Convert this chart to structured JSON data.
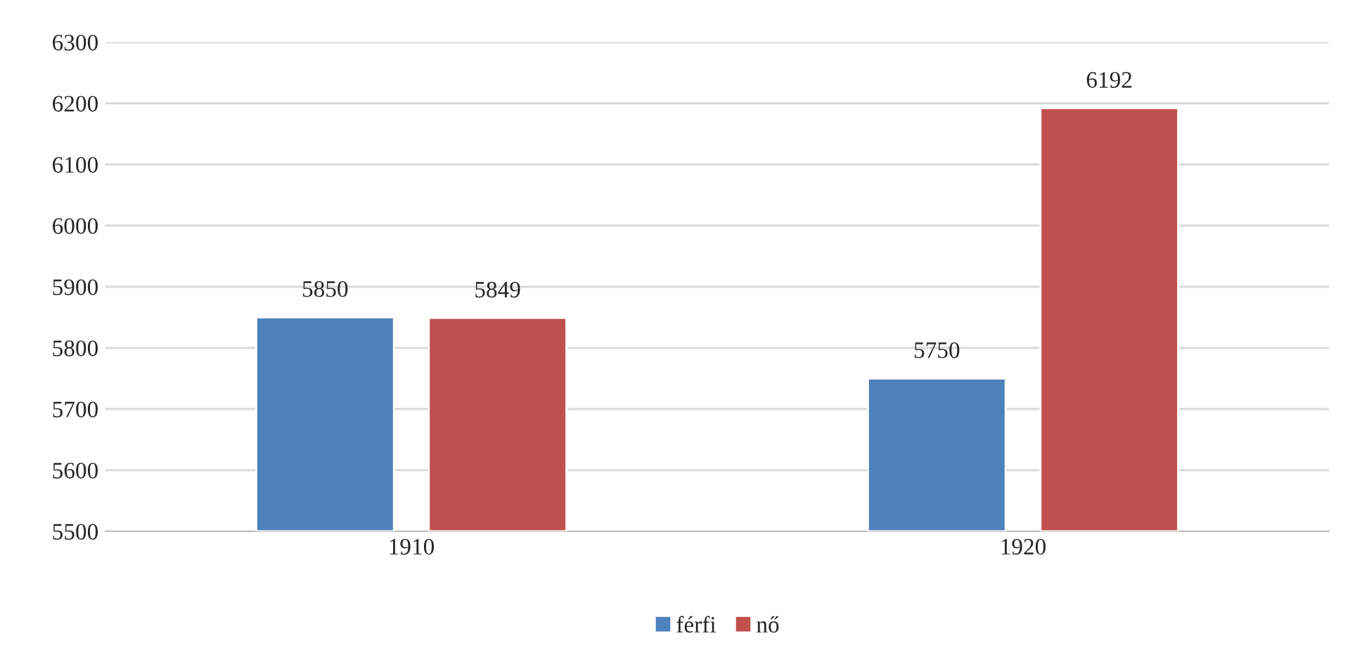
{
  "chart_data": {
    "type": "bar",
    "categories": [
      "1910",
      "1920"
    ],
    "series": [
      {
        "name": "férfi",
        "color": "#4f81bd",
        "values": [
          5850,
          5750
        ]
      },
      {
        "name": "nő",
        "color": "#c0504d",
        "values": [
          5849,
          6192
        ]
      }
    ],
    "ylim": [
      5500,
      6300
    ],
    "yticks": [
      5500,
      5600,
      5700,
      5800,
      5900,
      6000,
      6100,
      6200,
      6300
    ],
    "grid": "y",
    "legend": "bottom",
    "data_labels": true
  }
}
